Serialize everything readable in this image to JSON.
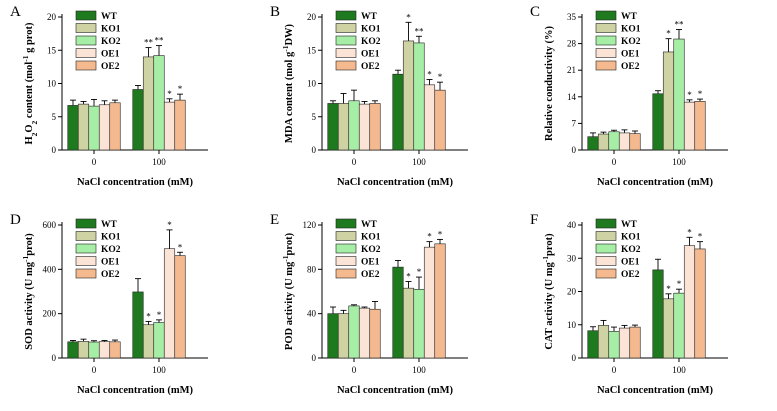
{
  "colors": {
    "WT": "#1f7a1f",
    "KO1": "#cfd3a3",
    "KO2": "#a6eea6",
    "OE1": "#fbe3d6",
    "OE2": "#f5b990"
  },
  "chart_data": [
    {
      "type": "bar",
      "panel": "A",
      "ylabel_parts": [
        "H",
        "2",
        "O",
        "2",
        " content (mol",
        "-1",
        " g prot)"
      ],
      "xlabel": "NaCl concentration (mM)",
      "categories": [
        "0",
        "100"
      ],
      "ylim": [
        0,
        20
      ],
      "yticks": [
        "0",
        "5",
        "10",
        "15",
        "20"
      ],
      "legend": [
        "WT",
        "KO1",
        "KO2",
        "OE1",
        "OE2"
      ],
      "series": [
        {
          "name": "WT",
          "values": [
            6.7,
            9.1
          ],
          "errors": [
            0.8,
            0.6
          ],
          "sig": [
            "",
            ""
          ]
        },
        {
          "name": "KO1",
          "values": [
            6.9,
            14.0
          ],
          "errors": [
            0.4,
            1.4
          ],
          "sig": [
            "",
            "**"
          ]
        },
        {
          "name": "KO2",
          "values": [
            6.6,
            14.2
          ],
          "errors": [
            1.0,
            1.5
          ],
          "sig": [
            "",
            "**"
          ]
        },
        {
          "name": "OE1",
          "values": [
            6.8,
            7.2
          ],
          "errors": [
            0.6,
            0.5
          ],
          "sig": [
            "",
            "*"
          ]
        },
        {
          "name": "OE2",
          "values": [
            7.1,
            7.5
          ],
          "errors": [
            0.4,
            0.9
          ],
          "sig": [
            "",
            "*"
          ]
        }
      ]
    },
    {
      "type": "bar",
      "panel": "B",
      "ylabel_parts": [
        "MDA content (mol g",
        "-1",
        "DW)"
      ],
      "xlabel": "NaCl concentration (mM)",
      "categories": [
        "0",
        "100"
      ],
      "ylim": [
        0,
        20
      ],
      "yticks": [
        "0",
        "5",
        "10",
        "15",
        "20"
      ],
      "legend": [
        "WT",
        "KO1",
        "KO2",
        "OE1",
        "OE2"
      ],
      "series": [
        {
          "name": "WT",
          "values": [
            7.0,
            11.4
          ],
          "errors": [
            0.4,
            0.6
          ],
          "sig": [
            "",
            ""
          ]
        },
        {
          "name": "KO1",
          "values": [
            7.0,
            16.4
          ],
          "errors": [
            1.5,
            2.8
          ],
          "sig": [
            "",
            "*"
          ]
        },
        {
          "name": "KO2",
          "values": [
            7.4,
            16.1
          ],
          "errors": [
            1.6,
            1.0
          ],
          "sig": [
            "",
            "**"
          ]
        },
        {
          "name": "OE1",
          "values": [
            6.9,
            9.8
          ],
          "errors": [
            0.4,
            0.8
          ],
          "sig": [
            "",
            "*"
          ]
        },
        {
          "name": "OE2",
          "values": [
            7.0,
            9.0
          ],
          "errors": [
            0.4,
            1.2
          ],
          "sig": [
            "",
            "*"
          ]
        }
      ]
    },
    {
      "type": "bar",
      "panel": "C",
      "ylabel_parts": [
        "Relative conductivity (%)"
      ],
      "xlabel": "NaCl concentration (mM)",
      "categories": [
        "0",
        "100"
      ],
      "ylim": [
        0,
        35
      ],
      "yticks": [
        "0",
        "7",
        "14",
        "21",
        "28",
        "35"
      ],
      "legend": [
        "WT",
        "KO1",
        "KO2",
        "OE1",
        "OE2"
      ],
      "series": [
        {
          "name": "WT",
          "values": [
            3.5,
            14.8
          ],
          "errors": [
            1.0,
            0.8
          ],
          "sig": [
            "",
            ""
          ]
        },
        {
          "name": "KO1",
          "values": [
            4.2,
            25.8
          ],
          "errors": [
            0.5,
            3.5
          ],
          "sig": [
            "",
            "*"
          ]
        },
        {
          "name": "KO2",
          "values": [
            4.8,
            29.2
          ],
          "errors": [
            0.4,
            2.5
          ],
          "sig": [
            "",
            "**"
          ]
        },
        {
          "name": "OE1",
          "values": [
            4.5,
            12.6
          ],
          "errors": [
            0.8,
            0.6
          ],
          "sig": [
            "",
            "*"
          ]
        },
        {
          "name": "OE2",
          "values": [
            4.3,
            12.8
          ],
          "errors": [
            0.7,
            0.6
          ],
          "sig": [
            "",
            "*"
          ]
        }
      ]
    },
    {
      "type": "bar",
      "panel": "D",
      "ylabel_parts": [
        "SOD activity (U mg",
        "-1",
        "prot)"
      ],
      "xlabel": "NaCl concentration (mM)",
      "categories": [
        "0",
        "100"
      ],
      "ylim": [
        0,
        600
      ],
      "yticks": [
        "0",
        "200",
        "400",
        "600"
      ],
      "legend": [
        "WT",
        "KO1",
        "KO2",
        "OE1",
        "OE2"
      ],
      "series": [
        {
          "name": "WT",
          "values": [
            73,
            298
          ],
          "errors": [
            6,
            60
          ],
          "sig": [
            "",
            ""
          ]
        },
        {
          "name": "KO1",
          "values": [
            75,
            150
          ],
          "errors": [
            10,
            15
          ],
          "sig": [
            "",
            "*"
          ]
        },
        {
          "name": "KO2",
          "values": [
            72,
            160
          ],
          "errors": [
            6,
            12
          ],
          "sig": [
            "",
            "*"
          ]
        },
        {
          "name": "OE1",
          "values": [
            74,
            493
          ],
          "errors": [
            5,
            85
          ],
          "sig": [
            "",
            "*"
          ]
        },
        {
          "name": "OE2",
          "values": [
            73,
            462
          ],
          "errors": [
            8,
            15
          ],
          "sig": [
            "",
            "*"
          ]
        }
      ]
    },
    {
      "type": "bar",
      "panel": "E",
      "ylabel_parts": [
        "POD activity (U mg",
        "-1",
        "prot)"
      ],
      "xlabel": "NaCl concentration (mM)",
      "categories": [
        "0",
        "100"
      ],
      "ylim": [
        0,
        120
      ],
      "yticks": [
        "0",
        "40",
        "80",
        "120"
      ],
      "legend": [
        "WT",
        "KO1",
        "KO2",
        "OE1",
        "OE2"
      ],
      "series": [
        {
          "name": "WT",
          "values": [
            40,
            82
          ],
          "errors": [
            6,
            6
          ],
          "sig": [
            "",
            ""
          ]
        },
        {
          "name": "KO1",
          "values": [
            40,
            63
          ],
          "errors": [
            3,
            6
          ],
          "sig": [
            "",
            "*"
          ]
        },
        {
          "name": "KO2",
          "values": [
            47,
            62
          ],
          "errors": [
            1,
            11
          ],
          "sig": [
            "",
            "*"
          ]
        },
        {
          "name": "OE1",
          "values": [
            45,
            100
          ],
          "errors": [
            1,
            5
          ],
          "sig": [
            "",
            "*"
          ]
        },
        {
          "name": "OE2",
          "values": [
            44,
            103
          ],
          "errors": [
            7,
            4
          ],
          "sig": [
            "",
            "*"
          ]
        }
      ]
    },
    {
      "type": "bar",
      "panel": "F",
      "ylabel_parts": [
        "CAT activity (U mg",
        "-1",
        "prot)"
      ],
      "xlabel": "NaCl concentration (mM)",
      "categories": [
        "0",
        "100"
      ],
      "ylim": [
        0,
        40
      ],
      "yticks": [
        "0",
        "10",
        "20",
        "30",
        "40"
      ],
      "legend": [
        "WT",
        "KO1",
        "KO2",
        "OE1",
        "OE2"
      ],
      "series": [
        {
          "name": "WT",
          "values": [
            8.2,
            26.5
          ],
          "errors": [
            1.2,
            3.2
          ],
          "sig": [
            "",
            ""
          ]
        },
        {
          "name": "KO1",
          "values": [
            9.8,
            17.8
          ],
          "errors": [
            1.5,
            1.5
          ],
          "sig": [
            "",
            "*"
          ]
        },
        {
          "name": "KO2",
          "values": [
            8.0,
            19.5
          ],
          "errors": [
            1.3,
            1.2
          ],
          "sig": [
            "",
            "*"
          ]
        },
        {
          "name": "OE1",
          "values": [
            9.0,
            33.8
          ],
          "errors": [
            0.8,
            2.5
          ],
          "sig": [
            "",
            "*"
          ]
        },
        {
          "name": "OE2",
          "values": [
            9.3,
            32.8
          ],
          "errors": [
            0.6,
            2.2
          ],
          "sig": [
            "",
            "*"
          ]
        }
      ]
    }
  ]
}
